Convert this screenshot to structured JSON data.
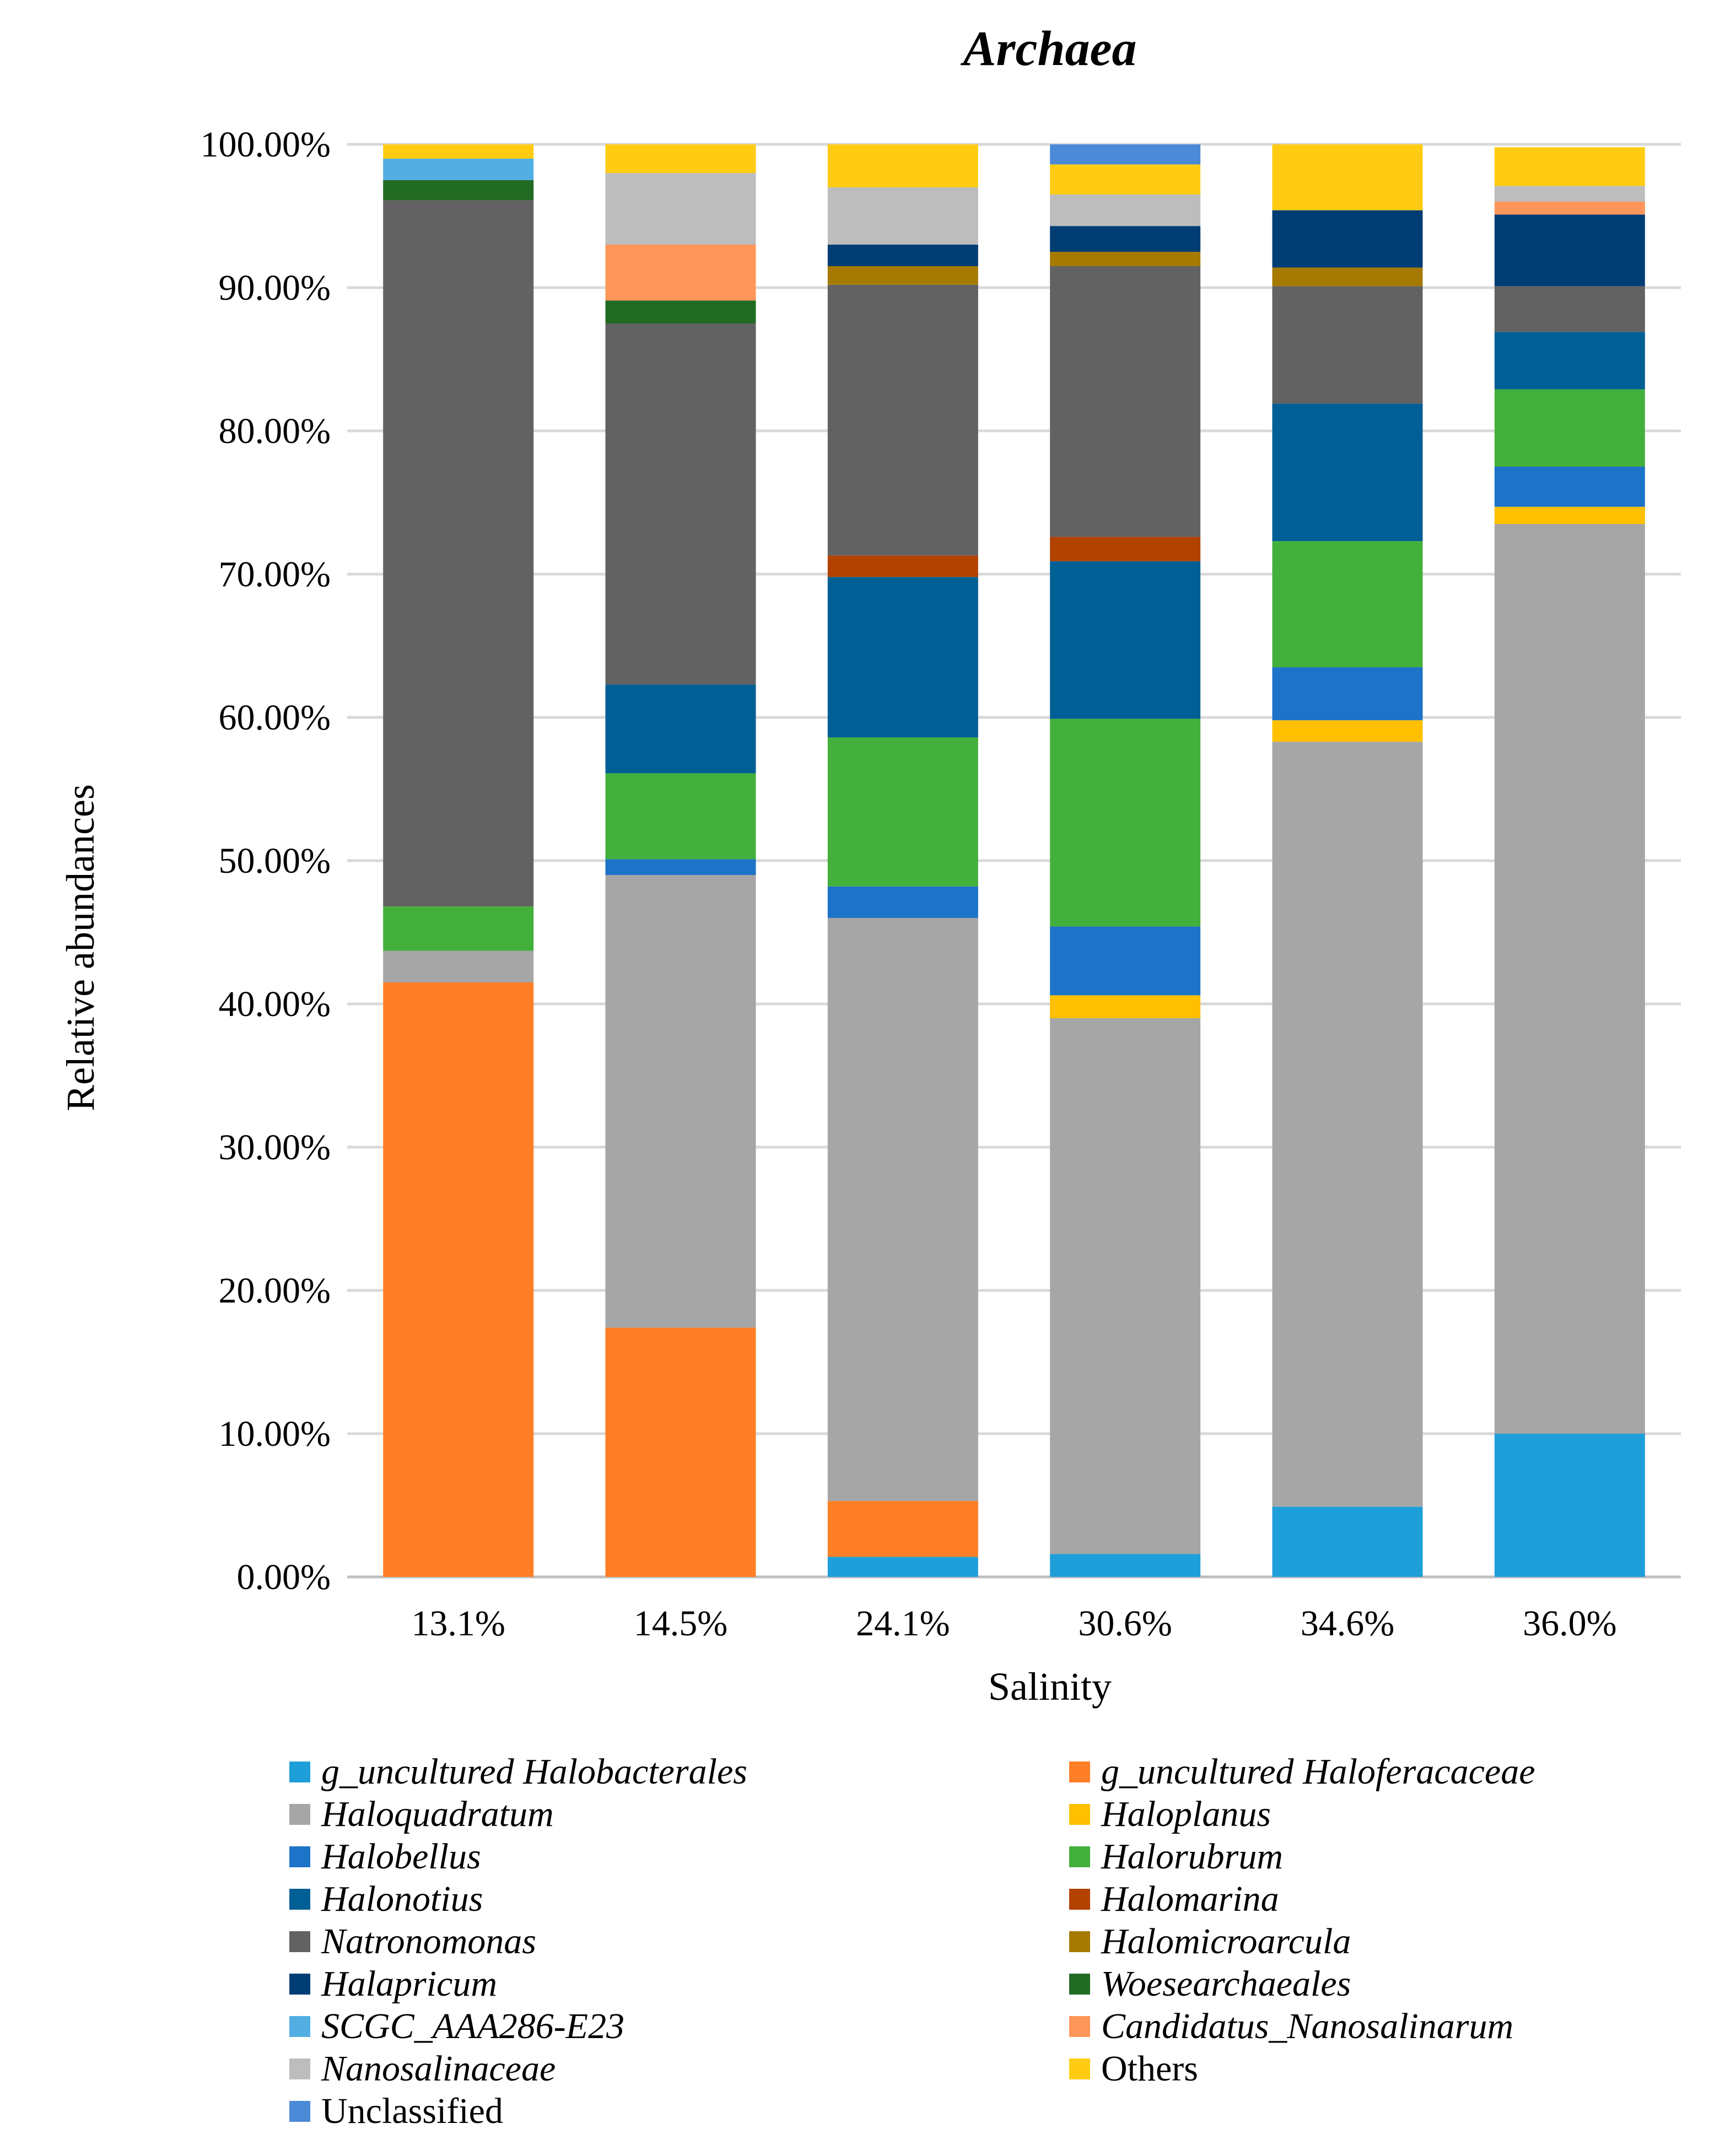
{
  "chart_data": {
    "type": "bar",
    "stacked": true,
    "title": "Archaea",
    "xlabel": "Salinity",
    "ylabel": "Relative abundances",
    "ylim": [
      0,
      100
    ],
    "grid": true,
    "legend_position": "bottom",
    "categories": [
      "13.1%",
      "14.5%",
      "24.1%",
      "30.6%",
      "34.6%",
      "36.0%"
    ],
    "yticks": [
      "0.00%",
      "10.00%",
      "20.00%",
      "30.00%",
      "40.00%",
      "50.00%",
      "60.00%",
      "70.00%",
      "80.00%",
      "90.00%",
      "100.00%"
    ],
    "series": [
      {
        "name": "g_uncultured Halobacterales",
        "italic": true,
        "color": "#1f9fd9",
        "values": [
          0,
          0,
          1.4,
          1.6,
          4.9,
          10.0
        ]
      },
      {
        "name": "g_uncultured Haloferacaceae",
        "italic": true,
        "color": "#fe7f27",
        "values": [
          41.5,
          17.4,
          3.9,
          0,
          0,
          0
        ]
      },
      {
        "name": "Haloquadratum",
        "italic": true,
        "color": "#a6a6a6",
        "values": [
          2.2,
          31.6,
          40.7,
          37.4,
          53.4,
          63.5
        ]
      },
      {
        "name": "Haloplanus",
        "italic": true,
        "color": "#ffc000",
        "values": [
          0,
          0,
          0,
          1.6,
          1.5,
          1.2
        ]
      },
      {
        "name": "Halobellus",
        "italic": true,
        "color": "#1d73c8",
        "values": [
          0,
          1.1,
          2.2,
          4.8,
          3.7,
          2.8
        ]
      },
      {
        "name": "Halorubrum",
        "italic": true,
        "color": "#43b03c",
        "values": [
          3.1,
          6.0,
          10.4,
          14.5,
          8.8,
          5.4
        ]
      },
      {
        "name": "Halonotius",
        "italic": true,
        "color": "#005f94",
        "values": [
          0,
          6.2,
          11.2,
          11.0,
          9.6,
          4.0
        ]
      },
      {
        "name": "Halomarina",
        "italic": true,
        "color": "#b24200",
        "values": [
          0,
          0,
          1.5,
          1.7,
          0,
          0
        ]
      },
      {
        "name": "Natronomonas",
        "italic": true,
        "color": "#626262",
        "values": [
          49.3,
          25.2,
          18.9,
          18.9,
          8.2,
          3.2
        ]
      },
      {
        "name": "Halomicroarcula",
        "italic": true,
        "color": "#a67a00",
        "values": [
          0,
          0,
          1.3,
          1.0,
          1.3,
          0
        ]
      },
      {
        "name": "Halapricum",
        "italic": true,
        "color": "#003d75",
        "values": [
          0,
          0,
          1.5,
          1.8,
          4.0,
          5.0
        ]
      },
      {
        "name": "Woesearchaeales",
        "italic": true,
        "color": "#226b24",
        "values": [
          1.4,
          1.6,
          0,
          0,
          0,
          0
        ]
      },
      {
        "name": "SCGC_AAA286-E23",
        "italic": true,
        "color": "#52aee3",
        "values": [
          1.5,
          0,
          0,
          0,
          0,
          0
        ]
      },
      {
        "name": "Candidatus_Nanosalinarum",
        "italic": true,
        "color": "#fe9659",
        "values": [
          0,
          3.9,
          0,
          0,
          0,
          0.9
        ]
      },
      {
        "name": "Nanosalinaceae",
        "italic": true,
        "color": "#bdbdbd",
        "values": [
          0,
          5.0,
          4.0,
          2.2,
          0,
          1.1
        ]
      },
      {
        "name": "Others",
        "italic": false,
        "color": "#ffcc13",
        "values": [
          1.0,
          2.0,
          3.0,
          2.1,
          4.6,
          2.7
        ]
      },
      {
        "name": "Unclassified",
        "italic": false,
        "color": "#4a8ad6",
        "values": [
          0,
          0,
          0,
          1.4,
          0,
          0
        ]
      }
    ]
  }
}
